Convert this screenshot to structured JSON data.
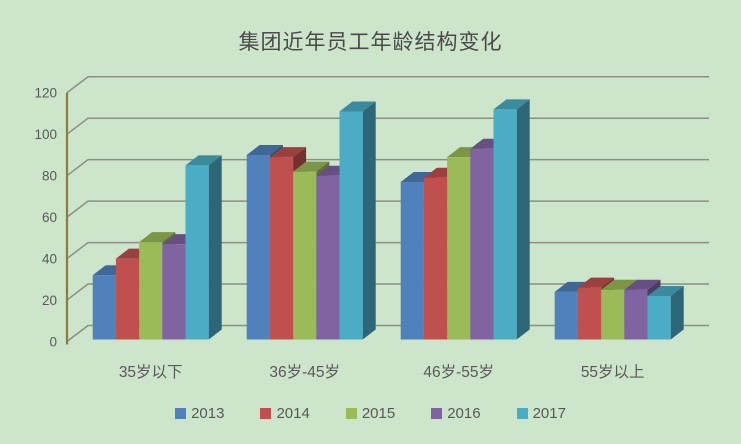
{
  "chart_data": {
    "type": "bar",
    "variant": "3d-clustered-column",
    "title": "集团近年员工年龄结构变化",
    "categories": [
      "35岁以下",
      "36岁-45岁",
      "46岁-55岁",
      "55岁以上"
    ],
    "series": [
      {
        "name": "2013",
        "color": "#4F81BD",
        "values": [
          31,
          89,
          76,
          23
        ]
      },
      {
        "name": "2014",
        "color": "#C0504D",
        "values": [
          39,
          88,
          78,
          25
        ]
      },
      {
        "name": "2015",
        "color": "#9BBB59",
        "values": [
          47,
          81,
          88,
          24
        ]
      },
      {
        "name": "2016",
        "color": "#8064A2",
        "values": [
          46,
          79,
          92,
          24
        ]
      },
      {
        "name": "2017",
        "color": "#4BACC6",
        "values": [
          84,
          110,
          111,
          21
        ]
      }
    ],
    "y_axis": {
      "min": 0,
      "max": 120,
      "step": 20,
      "tick_labels": [
        "0",
        "20",
        "40",
        "60",
        "80",
        "100",
        "120"
      ]
    },
    "xlabel": "",
    "ylabel": "",
    "grid": true,
    "legend_position": "bottom"
  },
  "colors": {
    "background": "#cde5ca",
    "gridline": "#8b8f86",
    "axis_line": "#8a7d3e",
    "tick_text": "#595959",
    "category_text": "#595959",
    "title_text": "#4a4a4a"
  }
}
